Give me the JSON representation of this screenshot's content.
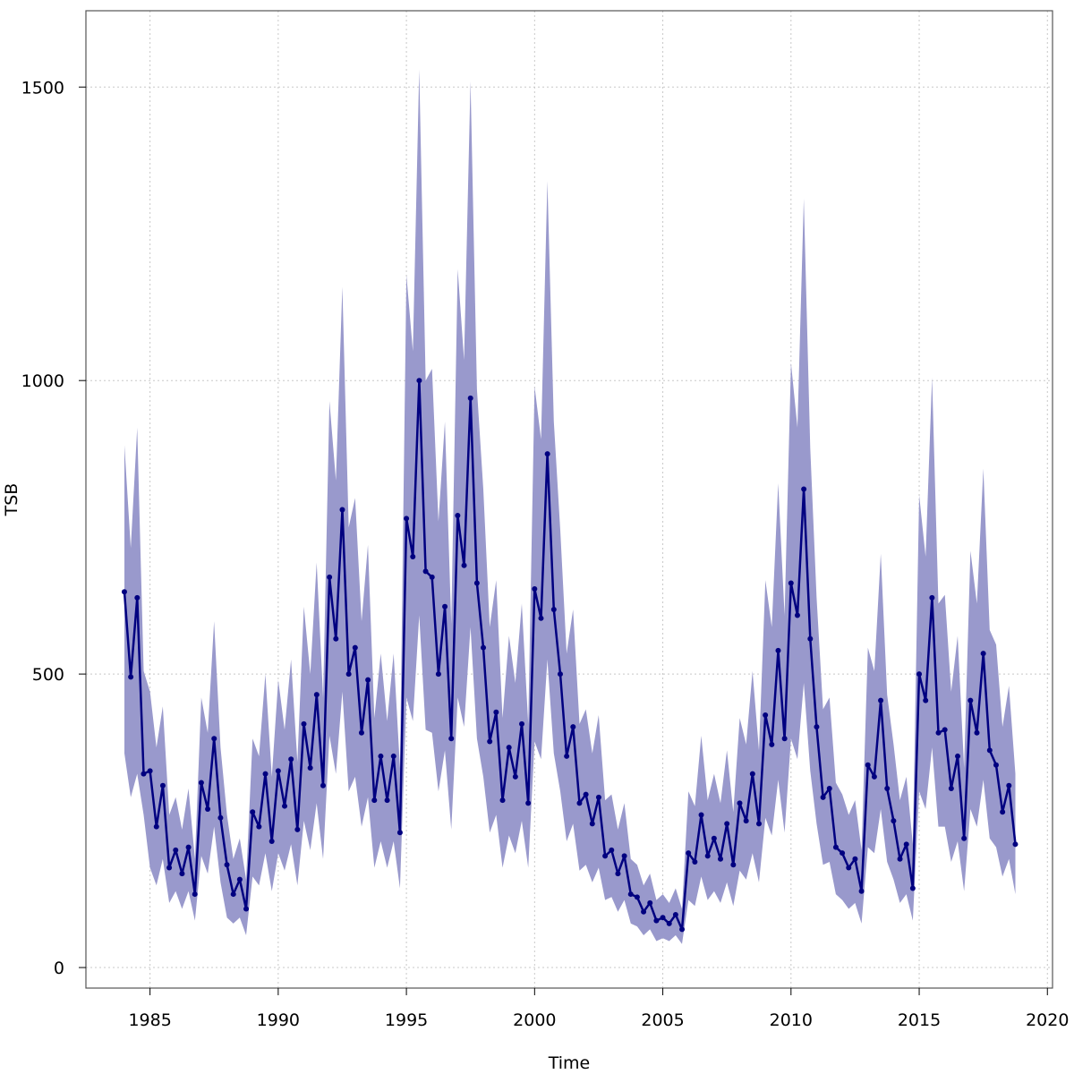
{
  "chart_data": {
    "type": "line",
    "title": "",
    "xlabel": "Time",
    "ylabel": "TSB",
    "xlim": [
      1982.5,
      2020.2
    ],
    "ylim": [
      -35,
      1630
    ],
    "grid": true,
    "x_ticks": [
      1985,
      1990,
      1995,
      2000,
      2005,
      2010,
      2015,
      2020
    ],
    "y_ticks": [
      0,
      500,
      1000,
      1500
    ],
    "x_tick_labels": [
      "1985",
      "1990",
      "1995",
      "2000",
      "2005",
      "2010",
      "2015",
      "2020"
    ],
    "y_tick_labels": [
      "0",
      "500",
      "1000",
      "1500"
    ],
    "colors": {
      "line": "#000080",
      "band": "#9999cc",
      "grid": "#c8c8c8",
      "axis": "#555555"
    },
    "series": [
      {
        "x_start": 1984.0,
        "x_step": 0.25,
        "values": [
          640,
          495,
          630,
          330,
          335,
          240,
          310,
          170,
          200,
          160,
          205,
          125,
          315,
          270,
          390,
          255,
          175,
          125,
          150,
          100,
          265,
          240,
          330,
          215,
          335,
          275,
          355,
          235,
          415,
          340,
          465,
          310,
          665,
          560,
          780,
          500,
          545,
          400,
          490,
          285,
          360,
          285,
          360,
          230,
          765,
          700,
          1000,
          675,
          665,
          500,
          615,
          390,
          770,
          685,
          970,
          655,
          545,
          385,
          435,
          285,
          375,
          325,
          415,
          280,
          645,
          595,
          875,
          610,
          500,
          360,
          410,
          280,
          295,
          245,
          290,
          190,
          200,
          160,
          190,
          125,
          120,
          95,
          110,
          80,
          85,
          75,
          90,
          65,
          195,
          180,
          260,
          190,
          220,
          185,
          245,
          175,
          280,
          250,
          330,
          245,
          430,
          380,
          540,
          390,
          655,
          600,
          815,
          560,
          410,
          290,
          305,
          205,
          195,
          170,
          185,
          130,
          345,
          325,
          455,
          305,
          250,
          185,
          210,
          135,
          500,
          455,
          630,
          400,
          405,
          305,
          360,
          220,
          455,
          400,
          535,
          370,
          345,
          265,
          310,
          210
        ]
      }
    ],
    "band": {
      "lower": [
        365,
        290,
        330,
        260,
        170,
        140,
        185,
        110,
        130,
        100,
        130,
        80,
        190,
        160,
        240,
        145,
        85,
        75,
        85,
        55,
        155,
        140,
        195,
        130,
        195,
        165,
        210,
        140,
        250,
        200,
        280,
        185,
        395,
        330,
        470,
        300,
        325,
        240,
        290,
        170,
        215,
        170,
        215,
        135,
        460,
        420,
        600,
        405,
        400,
        300,
        370,
        235,
        460,
        410,
        580,
        390,
        325,
        230,
        260,
        170,
        225,
        195,
        250,
        170,
        385,
        355,
        525,
        365,
        300,
        215,
        245,
        165,
        175,
        145,
        170,
        115,
        120,
        95,
        115,
        75,
        70,
        55,
        65,
        45,
        50,
        45,
        55,
        40,
        115,
        105,
        155,
        115,
        130,
        110,
        145,
        105,
        165,
        150,
        195,
        145,
        255,
        225,
        320,
        230,
        390,
        355,
        485,
        335,
        245,
        175,
        180,
        125,
        115,
        100,
        110,
        75,
        205,
        195,
        270,
        180,
        150,
        110,
        125,
        80,
        300,
        270,
        375,
        240,
        240,
        180,
        215,
        130,
        270,
        240,
        320,
        220,
        205,
        155,
        185,
        125
      ],
      "upper": [
        890,
        715,
        920,
        505,
        470,
        375,
        445,
        260,
        290,
        235,
        305,
        185,
        460,
        400,
        590,
        375,
        260,
        185,
        220,
        150,
        390,
        360,
        500,
        325,
        490,
        405,
        525,
        350,
        615,
        500,
        690,
        460,
        965,
        830,
        1160,
        750,
        800,
        590,
        720,
        425,
        535,
        420,
        535,
        340,
        1180,
        1050,
        1530,
        1000,
        1020,
        760,
        930,
        585,
        1190,
        1035,
        1510,
        985,
        815,
        580,
        660,
        425,
        565,
        485,
        620,
        415,
        990,
        900,
        1340,
        930,
        745,
        535,
        610,
        415,
        440,
        365,
        430,
        285,
        295,
        235,
        280,
        185,
        175,
        140,
        160,
        115,
        125,
        110,
        135,
        100,
        300,
        275,
        395,
        285,
        330,
        280,
        370,
        265,
        425,
        380,
        505,
        370,
        660,
        580,
        825,
        600,
        1030,
        920,
        1310,
        885,
        630,
        440,
        460,
        315,
        295,
        260,
        285,
        200,
        545,
        505,
        705,
        465,
        380,
        285,
        325,
        210,
        805,
        700,
        1005,
        620,
        635,
        470,
        565,
        340,
        710,
        620,
        850,
        575,
        550,
        410,
        480,
        330
      ]
    }
  }
}
